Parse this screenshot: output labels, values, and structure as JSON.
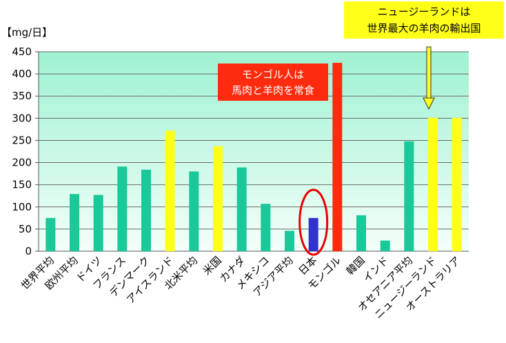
{
  "chart_data": {
    "type": "bar",
    "ylabel": "【mg/日】",
    "ylim": [
      0,
      450
    ],
    "yticks": [
      0,
      50,
      100,
      150,
      200,
      250,
      300,
      350,
      400,
      450
    ],
    "grid": true,
    "plot_background": "#a8f0d4",
    "categories": [
      "世界平均",
      "欧州平均",
      "ドイツ",
      "フランス",
      "デンマーク",
      "アイスランド",
      "北米平均",
      "米国",
      "カナダ",
      "メキシコ",
      "アジア平均",
      "日本",
      "モンゴル",
      "韓国",
      "インド",
      "オセアニア平均",
      "ニュージーランド",
      "オーストラリア"
    ],
    "values": [
      75,
      129,
      127,
      191,
      184,
      272,
      180,
      237,
      189,
      107,
      46,
      75,
      425,
      81,
      24,
      248,
      301,
      301
    ],
    "bar_colors": [
      "#1ac89a",
      "#1ac89a",
      "#1ac89a",
      "#1ac89a",
      "#1ac89a",
      "#ffff1a",
      "#1ac89a",
      "#ffff1a",
      "#1ac89a",
      "#1ac89a",
      "#1ac89a",
      "#3333cc",
      "#ff2b0f",
      "#1ac89a",
      "#1ac89a",
      "#1ac89a",
      "#ffff1a",
      "#ffff1a"
    ],
    "highlight_circle_category": "日本",
    "annotations": [
      {
        "id": "mongolia",
        "lines": [
          "モンゴル人は",
          "馬肉と羊肉を常食"
        ],
        "background": "#ff2b0f",
        "text_color": "#ffffff"
      },
      {
        "id": "newzealand",
        "lines": [
          "ニュージーランドは",
          "世界最大の羊肉の輸出国"
        ],
        "background": "#ffff1a",
        "text_color": "#000000",
        "arrow_to": "ニュージーランド"
      }
    ]
  }
}
